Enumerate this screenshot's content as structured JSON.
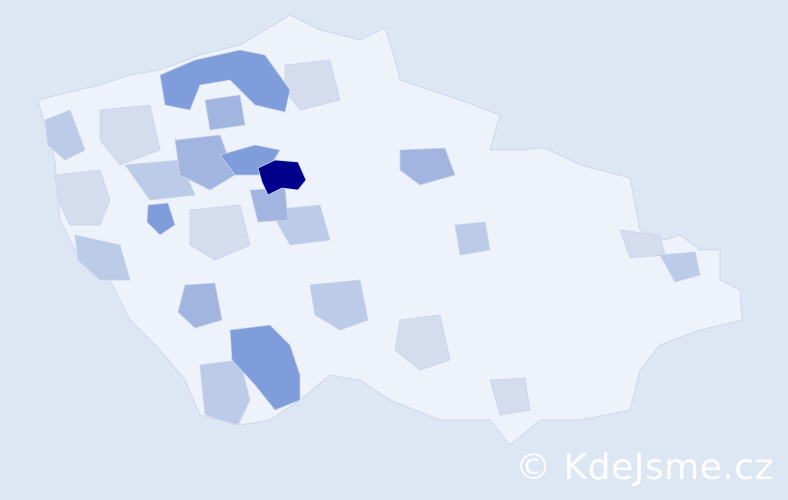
{
  "map": {
    "colors": {
      "background": "#dde6f3",
      "base": "#eef2fa",
      "light": "#d5dcee",
      "mid_light": "#bccbe7",
      "mid": "#a2b5e0",
      "strong": "#7f9ddb",
      "darkest": "#00008b",
      "border": "#c9d3ea"
    }
  },
  "watermark": {
    "text": "© KdeJsme.cz"
  }
}
